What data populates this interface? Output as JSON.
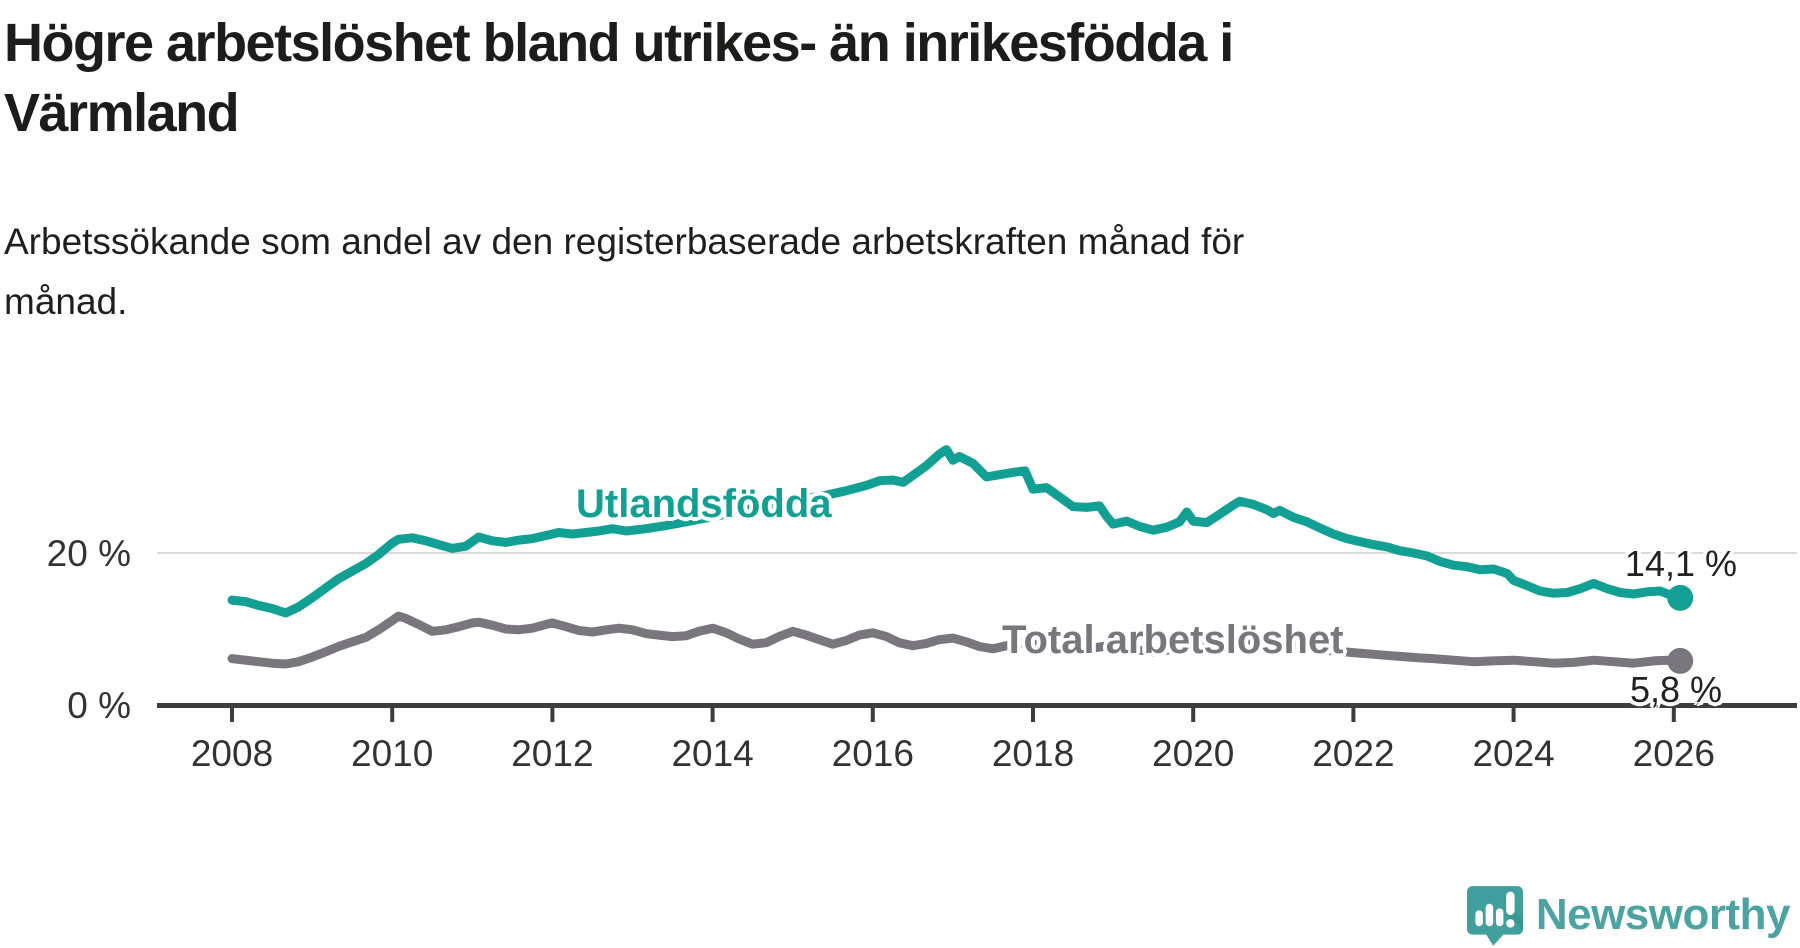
{
  "header": {
    "title_line1": "Högre arbetslöshet bland utrikes- än inrikesfödda i",
    "title_line2": "Värmland",
    "subtitle_line1": "Arbetssökande som andel av den registerbaserade arbetskraften månad för",
    "subtitle_line2": "månad."
  },
  "colors": {
    "accent_teal": "#12a094",
    "series_gray": "#7a767e",
    "gridline": "#dbdbdb",
    "axis": "#3d3d3d",
    "tick_text": "#333333",
    "brand_teal": "#41a09d"
  },
  "chart_data": {
    "type": "line",
    "title": "Högre arbetslöshet bland utrikes- än inrikesfödda i Värmland",
    "subtitle": "Arbetssökande som andel av den registerbaserade arbetskraften månad för månad.",
    "xlabel": "",
    "ylabel": "",
    "xlim": [
      2007.1,
      2027.5
    ],
    "ylim": [
      0,
      36
    ],
    "grid": "only 20 % horizontal gridline",
    "legend_position": "inline labels on lines",
    "x_ticks": [
      2008,
      2010,
      2012,
      2014,
      2016,
      2018,
      2020,
      2022,
      2024,
      2026
    ],
    "x_tick_labels": [
      "2008",
      "2010",
      "2012",
      "2014",
      "2016",
      "2018",
      "2020",
      "2022",
      "2024",
      "2026"
    ],
    "y_ticks": [
      {
        "value": 0,
        "label": "0 %",
        "gridline": false
      },
      {
        "value": 20,
        "label": "20 %",
        "gridline": true
      }
    ],
    "series": [
      {
        "name": "Utlandsfödda",
        "color": "#12a094",
        "end_label": "14,1 %",
        "end_value": 14.1,
        "points": [
          [
            2008.0,
            13.8
          ],
          [
            2008.17,
            13.6
          ],
          [
            2008.33,
            13.1
          ],
          [
            2008.5,
            12.7
          ],
          [
            2008.67,
            12.1
          ],
          [
            2008.83,
            12.9
          ],
          [
            2009.0,
            14.1
          ],
          [
            2009.17,
            15.4
          ],
          [
            2009.33,
            16.6
          ],
          [
            2009.5,
            17.6
          ],
          [
            2009.67,
            18.6
          ],
          [
            2009.83,
            19.8
          ],
          [
            2010.0,
            21.3
          ],
          [
            2010.08,
            21.8
          ],
          [
            2010.25,
            22.0
          ],
          [
            2010.42,
            21.6
          ],
          [
            2010.58,
            21.1
          ],
          [
            2010.75,
            20.6
          ],
          [
            2010.92,
            20.9
          ],
          [
            2011.08,
            22.1
          ],
          [
            2011.25,
            21.6
          ],
          [
            2011.42,
            21.4
          ],
          [
            2011.58,
            21.7
          ],
          [
            2011.75,
            21.9
          ],
          [
            2011.92,
            22.3
          ],
          [
            2012.08,
            22.7
          ],
          [
            2012.25,
            22.5
          ],
          [
            2012.42,
            22.7
          ],
          [
            2012.58,
            22.9
          ],
          [
            2012.75,
            23.2
          ],
          [
            2012.92,
            22.9
          ],
          [
            2013.17,
            23.2
          ],
          [
            2013.42,
            23.6
          ],
          [
            2013.67,
            24.1
          ],
          [
            2013.92,
            24.6
          ],
          [
            2014.17,
            25.1
          ],
          [
            2014.42,
            25.7
          ],
          [
            2014.67,
            26.2
          ],
          [
            2014.92,
            26.8
          ],
          [
            2015.17,
            27.2
          ],
          [
            2015.42,
            27.6
          ],
          [
            2015.67,
            28.2
          ],
          [
            2015.92,
            28.9
          ],
          [
            2016.08,
            29.5
          ],
          [
            2016.25,
            29.6
          ],
          [
            2016.38,
            29.3
          ],
          [
            2016.5,
            30.2
          ],
          [
            2016.67,
            31.5
          ],
          [
            2016.83,
            33.0
          ],
          [
            2016.92,
            33.6
          ],
          [
            2017.0,
            32.2
          ],
          [
            2017.08,
            32.7
          ],
          [
            2017.25,
            31.8
          ],
          [
            2017.42,
            30.0
          ],
          [
            2017.58,
            30.3
          ],
          [
            2017.75,
            30.6
          ],
          [
            2017.9,
            30.8
          ],
          [
            2018.0,
            28.4
          ],
          [
            2018.17,
            28.6
          ],
          [
            2018.33,
            27.4
          ],
          [
            2018.5,
            26.1
          ],
          [
            2018.67,
            26.0
          ],
          [
            2018.83,
            26.2
          ],
          [
            2018.92,
            24.8
          ],
          [
            2019.0,
            23.8
          ],
          [
            2019.17,
            24.2
          ],
          [
            2019.33,
            23.5
          ],
          [
            2019.5,
            23.0
          ],
          [
            2019.67,
            23.4
          ],
          [
            2019.83,
            24.1
          ],
          [
            2019.92,
            25.4
          ],
          [
            2020.0,
            24.2
          ],
          [
            2020.17,
            24.0
          ],
          [
            2020.33,
            25.1
          ],
          [
            2020.5,
            26.3
          ],
          [
            2020.58,
            26.8
          ],
          [
            2020.75,
            26.4
          ],
          [
            2020.92,
            25.7
          ],
          [
            2021.0,
            25.2
          ],
          [
            2021.08,
            25.6
          ],
          [
            2021.25,
            24.7
          ],
          [
            2021.42,
            24.1
          ],
          [
            2021.58,
            23.3
          ],
          [
            2021.75,
            22.5
          ],
          [
            2021.92,
            21.9
          ],
          [
            2022.08,
            21.5
          ],
          [
            2022.25,
            21.1
          ],
          [
            2022.42,
            20.8
          ],
          [
            2022.58,
            20.3
          ],
          [
            2022.75,
            20.0
          ],
          [
            2022.92,
            19.6
          ],
          [
            2023.08,
            18.9
          ],
          [
            2023.25,
            18.4
          ],
          [
            2023.42,
            18.2
          ],
          [
            2023.58,
            17.8
          ],
          [
            2023.75,
            17.9
          ],
          [
            2023.92,
            17.3
          ],
          [
            2024.0,
            16.4
          ],
          [
            2024.17,
            15.7
          ],
          [
            2024.33,
            15.0
          ],
          [
            2024.5,
            14.7
          ],
          [
            2024.67,
            14.8
          ],
          [
            2024.83,
            15.3
          ],
          [
            2025.0,
            16.0
          ],
          [
            2025.17,
            15.3
          ],
          [
            2025.33,
            14.8
          ],
          [
            2025.5,
            14.6
          ],
          [
            2025.67,
            14.9
          ],
          [
            2025.83,
            15.0
          ],
          [
            2025.95,
            14.5
          ],
          [
            2026.08,
            14.1
          ]
        ]
      },
      {
        "name": "Total arbetslöshet",
        "color": "#7a767e",
        "end_label": "5,8 %",
        "end_value": 5.8,
        "points": [
          [
            2008.0,
            6.1
          ],
          [
            2008.17,
            5.9
          ],
          [
            2008.33,
            5.7
          ],
          [
            2008.5,
            5.5
          ],
          [
            2008.67,
            5.4
          ],
          [
            2008.83,
            5.7
          ],
          [
            2009.0,
            6.3
          ],
          [
            2009.17,
            7.0
          ],
          [
            2009.33,
            7.7
          ],
          [
            2009.5,
            8.3
          ],
          [
            2009.67,
            8.9
          ],
          [
            2009.83,
            9.9
          ],
          [
            2010.0,
            11.1
          ],
          [
            2010.08,
            11.7
          ],
          [
            2010.17,
            11.4
          ],
          [
            2010.33,
            10.6
          ],
          [
            2010.5,
            9.7
          ],
          [
            2010.67,
            9.9
          ],
          [
            2010.83,
            10.3
          ],
          [
            2011.0,
            10.8
          ],
          [
            2011.08,
            10.9
          ],
          [
            2011.25,
            10.5
          ],
          [
            2011.42,
            10.0
          ],
          [
            2011.58,
            9.9
          ],
          [
            2011.75,
            10.1
          ],
          [
            2011.92,
            10.6
          ],
          [
            2012.0,
            10.8
          ],
          [
            2012.17,
            10.3
          ],
          [
            2012.33,
            9.8
          ],
          [
            2012.5,
            9.6
          ],
          [
            2012.67,
            9.9
          ],
          [
            2012.83,
            10.1
          ],
          [
            2013.0,
            9.9
          ],
          [
            2013.17,
            9.4
          ],
          [
            2013.33,
            9.2
          ],
          [
            2013.5,
            9.0
          ],
          [
            2013.67,
            9.1
          ],
          [
            2013.83,
            9.7
          ],
          [
            2014.0,
            10.1
          ],
          [
            2014.17,
            9.5
          ],
          [
            2014.33,
            8.7
          ],
          [
            2014.5,
            8.0
          ],
          [
            2014.67,
            8.2
          ],
          [
            2014.83,
            9.0
          ],
          [
            2015.0,
            9.7
          ],
          [
            2015.17,
            9.2
          ],
          [
            2015.33,
            8.6
          ],
          [
            2015.5,
            8.0
          ],
          [
            2015.67,
            8.5
          ],
          [
            2015.83,
            9.2
          ],
          [
            2016.0,
            9.5
          ],
          [
            2016.17,
            9.0
          ],
          [
            2016.33,
            8.2
          ],
          [
            2016.5,
            7.8
          ],
          [
            2016.67,
            8.1
          ],
          [
            2016.83,
            8.6
          ],
          [
            2017.0,
            8.8
          ],
          [
            2017.17,
            8.3
          ],
          [
            2017.33,
            7.7
          ],
          [
            2017.5,
            7.4
          ],
          [
            2017.67,
            7.8
          ],
          [
            2017.83,
            8.1
          ],
          [
            2018.0,
            8.4
          ],
          [
            2018.25,
            7.8
          ],
          [
            2018.5,
            7.2
          ],
          [
            2018.75,
            7.5
          ],
          [
            2019.0,
            7.9
          ],
          [
            2019.25,
            7.3
          ],
          [
            2019.5,
            7.0
          ],
          [
            2019.75,
            7.3
          ],
          [
            2020.0,
            7.7
          ],
          [
            2020.33,
            8.8
          ],
          [
            2020.58,
            8.6
          ],
          [
            2020.83,
            8.4
          ],
          [
            2021.0,
            8.3
          ],
          [
            2021.33,
            7.8
          ],
          [
            2021.67,
            7.2
          ],
          [
            2022.0,
            6.9
          ],
          [
            2022.33,
            6.6
          ],
          [
            2022.58,
            6.4
          ],
          [
            2022.83,
            6.2
          ],
          [
            2023.0,
            6.1
          ],
          [
            2023.25,
            5.9
          ],
          [
            2023.5,
            5.7
          ],
          [
            2023.75,
            5.8
          ],
          [
            2024.0,
            5.9
          ],
          [
            2024.25,
            5.7
          ],
          [
            2024.5,
            5.5
          ],
          [
            2024.75,
            5.6
          ],
          [
            2025.0,
            5.9
          ],
          [
            2025.25,
            5.7
          ],
          [
            2025.5,
            5.5
          ],
          [
            2025.75,
            5.8
          ],
          [
            2025.92,
            5.9
          ],
          [
            2026.08,
            5.8
          ]
        ]
      }
    ]
  },
  "footer": {
    "brand": "Newsworthy"
  }
}
